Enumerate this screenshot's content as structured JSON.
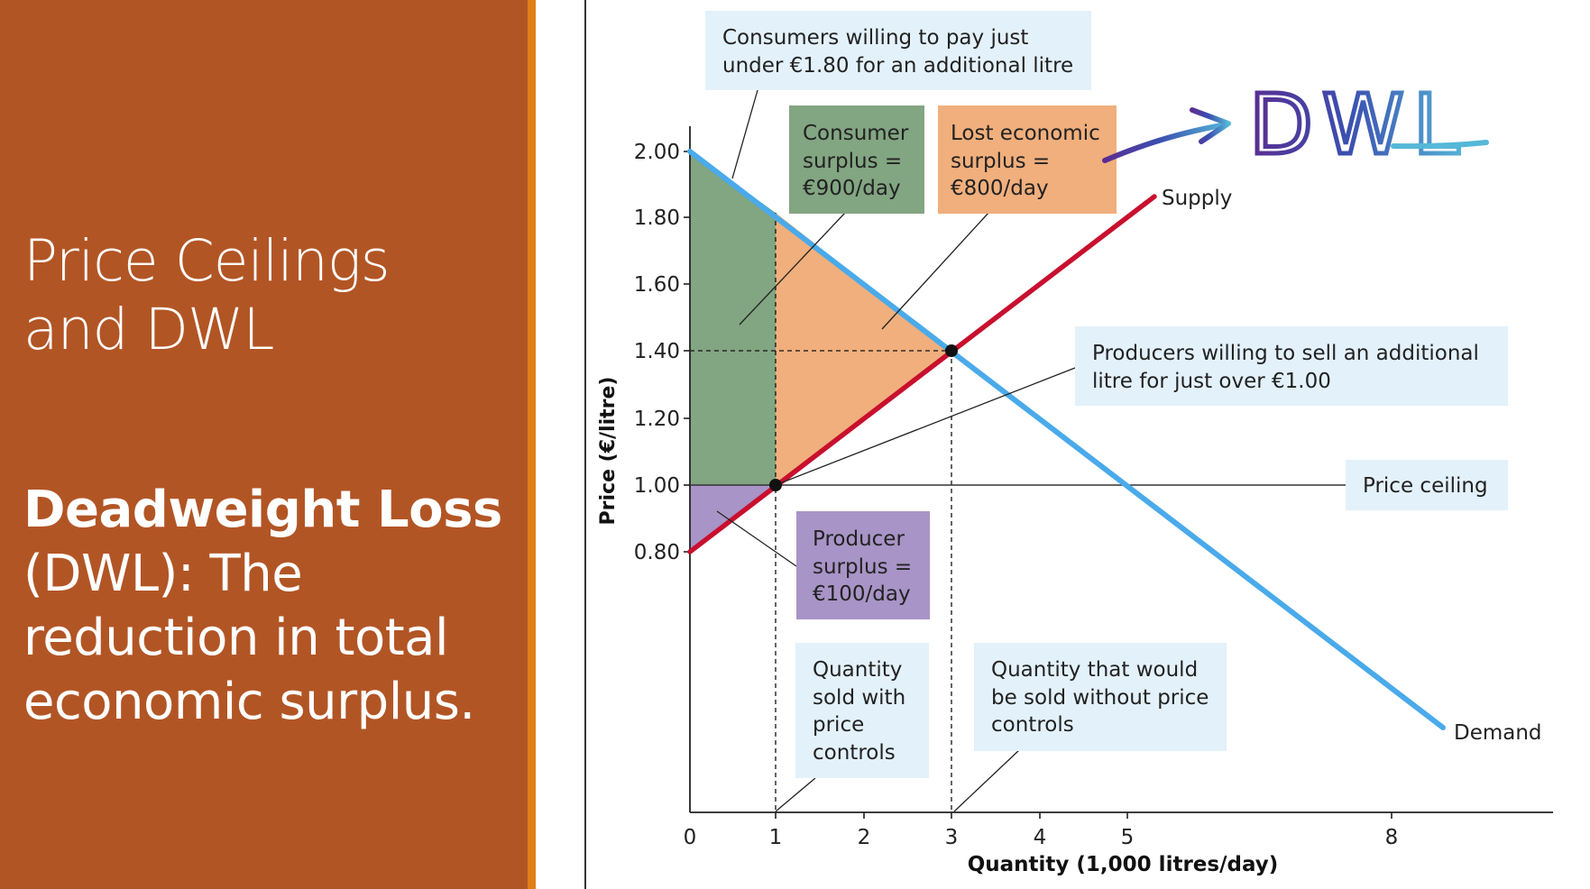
{
  "slide": {
    "title": "Price Ceilings and DWL",
    "definition_term": "Deadweight Loss",
    "definition_rest": " (DWL): The reduction in total economic surplus."
  },
  "colors": {
    "left_panel": "#b25525",
    "accent": "#e07e18",
    "demand": "#4aaaea",
    "supply": "#c8102e",
    "consumer_surplus": "#82a582",
    "lost_surplus": "#f0af7c",
    "producer_surplus": "#a894c6",
    "annotation_box": "#e3f1fb",
    "dwl_handwriting": "#5a3fa0"
  },
  "chart_data": {
    "type": "line",
    "xlabel": "Quantity (1,000 litres/day)",
    "ylabel": "Price (€/litre)",
    "xlim": [
      0,
      9.8
    ],
    "ylim": [
      0,
      2.0
    ],
    "x_ticks": [
      "0",
      "1",
      "2",
      "3",
      "4",
      "5",
      "8"
    ],
    "y_ticks": [
      "2.00",
      "1.80",
      "1.60",
      "1.40",
      "1.20",
      "1.00",
      "0.80"
    ],
    "series": [
      {
        "name": "Demand",
        "x": [
          0,
          8.6
        ],
        "y": [
          2.0,
          0.28
        ]
      },
      {
        "name": "Supply",
        "x": [
          0,
          5.3
        ],
        "y": [
          0.8,
          1.86
        ]
      }
    ],
    "price_ceiling": {
      "label": "Price ceiling",
      "y": 1.0
    },
    "equilibrium": {
      "x": 3,
      "y": 1.4
    },
    "ceiling_point": {
      "x": 1,
      "y": 1.0
    },
    "areas": [
      {
        "name": "Consumer surplus",
        "value": "€900/day"
      },
      {
        "name": "Lost economic surplus",
        "value": "€800/day"
      },
      {
        "name": "Producer surplus",
        "value": "€100/day"
      }
    ],
    "annotations": {
      "consumers": "Consumers willing to pay just under €1.80 for an additional litre",
      "consumer_surplus": "Consumer surplus = €900/day",
      "lost_surplus": "Lost economic surplus = €800/day",
      "producers": "Producers willing to sell an additional litre for just over €1.00",
      "price_ceiling": "Price ceiling",
      "producer_surplus": "Producer surplus = €100/day",
      "qty_with_controls": "Quantity sold with price controls",
      "qty_without_controls": "Quantity that would be sold without price controls",
      "supply_label": "Supply",
      "demand_label": "Demand",
      "dwl": "DWL"
    }
  }
}
